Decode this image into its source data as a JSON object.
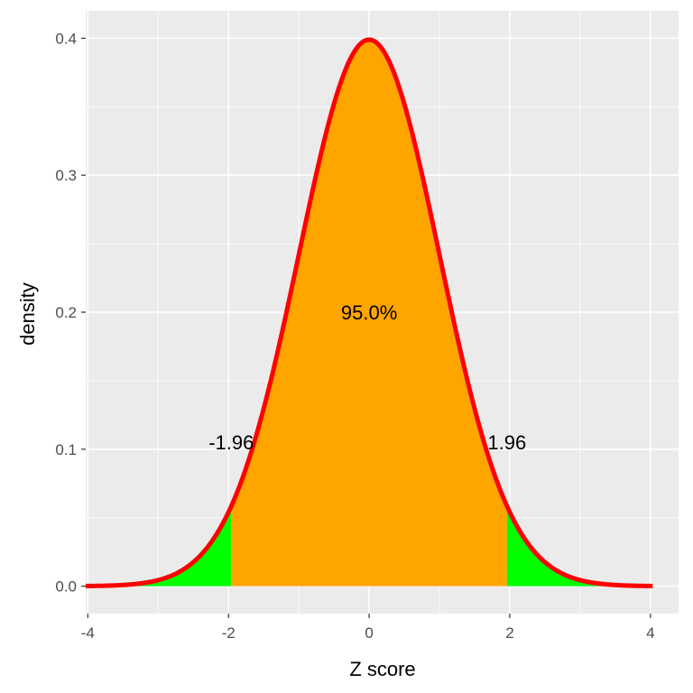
{
  "chart_data": {
    "type": "area",
    "title": "",
    "xlabel": "Z score",
    "ylabel": "density",
    "xlim": [
      -4.03,
      4.4
    ],
    "ylim": [
      -0.02,
      0.42
    ],
    "x_ticks": [
      -4,
      -2,
      0,
      2,
      4
    ],
    "x_tick_labels": [
      "-4",
      "-2",
      "0",
      "2",
      "4"
    ],
    "y_ticks": [
      0.0,
      0.1,
      0.2,
      0.3,
      0.4
    ],
    "y_tick_labels": [
      "0.0",
      "0.1",
      "0.2",
      "0.3",
      "0.4"
    ],
    "grid": true,
    "curve": {
      "distribution": "standard normal",
      "x_range": [
        -4,
        4
      ],
      "peak": {
        "x": 0,
        "y": 0.4
      }
    },
    "regions": [
      {
        "from": -4,
        "to": -1.96
      },
      {
        "from": -1.96,
        "to": 1.96
      },
      {
        "from": 1.96,
        "to": 4
      }
    ],
    "annotations": [
      {
        "text": "95.0%",
        "x": 0,
        "y": 0.2
      },
      {
        "text": "-1.96",
        "x": -1.96,
        "y": 0.105
      },
      {
        "text": "1.96",
        "x": 1.96,
        "y": 0.105
      }
    ],
    "colors": {
      "panel": "#EBEBEB",
      "grid": "#FFFFFF",
      "center_fill": "#FFA500",
      "tail_fill": "#00FF00",
      "curve": "#FF0000"
    }
  }
}
